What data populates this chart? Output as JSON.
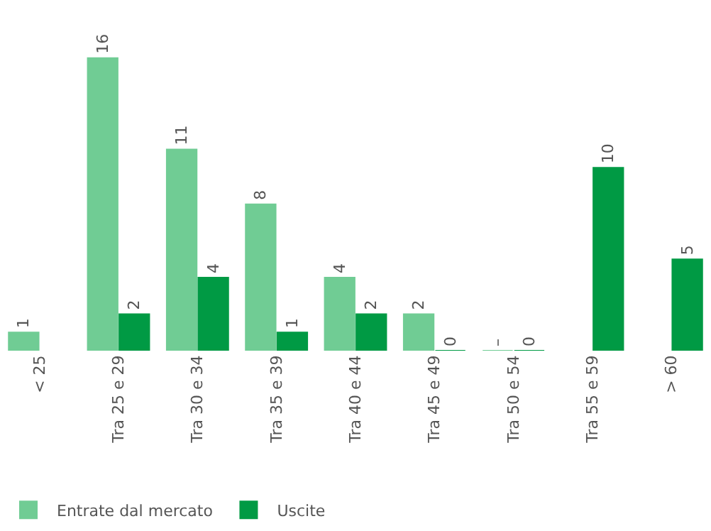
{
  "chart_data": {
    "type": "bar",
    "categories": [
      "< 25",
      "Tra 25 e 29",
      "Tra 30 e 34",
      "Tra 35 e 39",
      "Tra 40 e 44",
      "Tra 45 e 49",
      "Tra 50 e 54",
      "Tra 55 e 59",
      "> 60"
    ],
    "series": [
      {
        "name": "Entrate dal mercato",
        "color": "#70cc94",
        "values": [
          1,
          16,
          11,
          8,
          4,
          2,
          0,
          null,
          null
        ],
        "value_labels": [
          "1",
          "16",
          "11",
          "8",
          "4",
          "2",
          "–",
          null,
          null
        ]
      },
      {
        "name": "Uscite",
        "color": "#009a44",
        "values": [
          null,
          2,
          4,
          1,
          2,
          0,
          0,
          10,
          5
        ],
        "value_labels": [
          null,
          "2",
          "4",
          "1",
          "2",
          "0",
          "0",
          "10",
          "5"
        ]
      }
    ],
    "legend": "bottom left"
  }
}
